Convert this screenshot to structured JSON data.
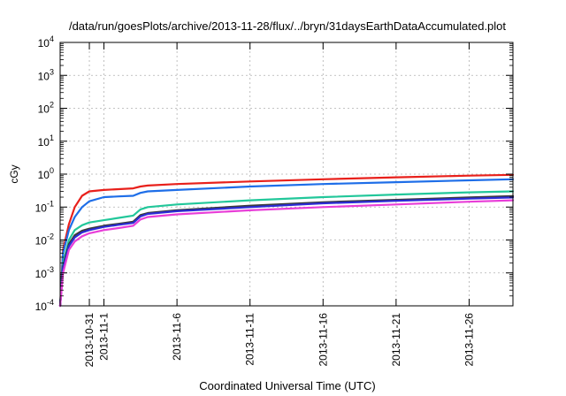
{
  "chart_data": {
    "type": "line",
    "title": "/data/run/goesPlots/archive/2013-11-28/flux/../bryn/31daysEarthDataAccumulated.plot",
    "xlabel": "Coordinated Universal Time (UTC)",
    "ylabel": "cGy",
    "y_scale": "log",
    "ylim": [
      0.0001,
      10000
    ],
    "xlim": [
      "2013-10-29",
      "2013-11-29"
    ],
    "x_ticks": [
      "2013-10-31",
      "2013-11-1",
      "2013-11-6",
      "2013-11-11",
      "2013-11-16",
      "2013-11-21",
      "2013-11-26"
    ],
    "y_ticks": [
      {
        "base": "10",
        "exp": "-4"
      },
      {
        "base": "10",
        "exp": "-3"
      },
      {
        "base": "10",
        "exp": "-2"
      },
      {
        "base": "10",
        "exp": "-1"
      },
      {
        "base": "10",
        "exp": "0"
      },
      {
        "base": "10",
        "exp": "1"
      },
      {
        "base": "10",
        "exp": "2"
      },
      {
        "base": "10",
        "exp": "3"
      },
      {
        "base": "10",
        "exp": "4"
      }
    ],
    "grid": true,
    "legend": "none",
    "series": [
      {
        "color": "#e8201b",
        "x": [
          "2013-10-29",
          "2013-10-29.2",
          "2013-10-29.6",
          "2013-10-30",
          "2013-10-30.5",
          "2013-10-31",
          "2013-11-1",
          "2013-11-2",
          "2013-11-3",
          "2013-11-3.5",
          "2013-11-4",
          "2013-11-6",
          "2013-11-11",
          "2013-11-16",
          "2013-11-21",
          "2013-11-26",
          "2013-11-29"
        ],
        "values": [
          0.0001,
          0.005,
          0.03,
          0.1,
          0.22,
          0.3,
          0.33,
          0.35,
          0.37,
          0.42,
          0.45,
          0.5,
          0.6,
          0.7,
          0.8,
          0.9,
          0.95
        ]
      },
      {
        "color": "#1e6ee8",
        "x": [
          "2013-10-29",
          "2013-10-29.2",
          "2013-10-29.6",
          "2013-10-30",
          "2013-10-30.5",
          "2013-10-31",
          "2013-11-1",
          "2013-11-2",
          "2013-11-3",
          "2013-11-3.5",
          "2013-11-4",
          "2013-11-6",
          "2013-11-11",
          "2013-11-16",
          "2013-11-21",
          "2013-11-26",
          "2013-11-29"
        ],
        "values": [
          0.0001,
          0.004,
          0.02,
          0.05,
          0.1,
          0.15,
          0.2,
          0.21,
          0.22,
          0.27,
          0.3,
          0.33,
          0.42,
          0.5,
          0.57,
          0.65,
          0.7
        ]
      },
      {
        "color": "#22c79a",
        "x": [
          "2013-10-29",
          "2013-10-29.2",
          "2013-10-29.6",
          "2013-10-30",
          "2013-10-30.5",
          "2013-10-31",
          "2013-11-1",
          "2013-11-2",
          "2013-11-3",
          "2013-11-3.5",
          "2013-11-4",
          "2013-11-6",
          "2013-11-11",
          "2013-11-16",
          "2013-11-21",
          "2013-11-26",
          "2013-11-29"
        ],
        "values": [
          0.0001,
          0.002,
          0.01,
          0.02,
          0.028,
          0.034,
          0.04,
          0.047,
          0.055,
          0.085,
          0.1,
          0.12,
          0.16,
          0.2,
          0.24,
          0.28,
          0.3
        ]
      },
      {
        "color": "#7a1f8c",
        "x": [
          "2013-10-29",
          "2013-10-29.2",
          "2013-10-29.6",
          "2013-10-30",
          "2013-10-30.5",
          "2013-10-31",
          "2013-11-1",
          "2013-11-2",
          "2013-11-3",
          "2013-11-3.5",
          "2013-11-4",
          "2013-11-6",
          "2013-11-11",
          "2013-11-16",
          "2013-11-21",
          "2013-11-26",
          "2013-11-29"
        ],
        "values": [
          0.0001,
          0.0015,
          0.007,
          0.013,
          0.018,
          0.021,
          0.026,
          0.03,
          0.035,
          0.055,
          0.064,
          0.078,
          0.105,
          0.135,
          0.16,
          0.19,
          0.205
        ]
      },
      {
        "color": "#3a3a3a",
        "x": [
          "2013-10-29",
          "2013-10-29.2",
          "2013-10-29.6",
          "2013-10-30",
          "2013-10-30.5",
          "2013-10-31",
          "2013-11-1",
          "2013-11-2",
          "2013-11-3",
          "2013-11-3.5",
          "2013-11-4",
          "2013-11-6",
          "2013-11-11",
          "2013-11-16",
          "2013-11-21",
          "2013-11-26",
          "2013-11-29"
        ],
        "values": [
          0.0001,
          0.0016,
          0.0075,
          0.014,
          0.019,
          0.022,
          0.027,
          0.031,
          0.036,
          0.057,
          0.066,
          0.08,
          0.11,
          0.14,
          0.165,
          0.195,
          0.215
        ]
      },
      {
        "color": "#2b2bd6",
        "x": [
          "2013-10-29",
          "2013-10-29.2",
          "2013-10-29.6",
          "2013-10-30",
          "2013-10-30.5",
          "2013-10-31",
          "2013-11-1",
          "2013-11-2",
          "2013-11-3",
          "2013-11-3.5",
          "2013-11-4",
          "2013-11-6",
          "2013-11-11",
          "2013-11-16",
          "2013-11-21",
          "2013-11-26",
          "2013-11-29"
        ],
        "values": [
          0.0001,
          0.0014,
          0.0065,
          0.012,
          0.017,
          0.02,
          0.025,
          0.029,
          0.033,
          0.052,
          0.062,
          0.075,
          0.1,
          0.13,
          0.155,
          0.18,
          0.195
        ]
      },
      {
        "color": "#e83ed8",
        "x": [
          "2013-10-29",
          "2013-10-29.2",
          "2013-10-29.6",
          "2013-10-30",
          "2013-10-30.5",
          "2013-10-31",
          "2013-11-1",
          "2013-11-2",
          "2013-11-3",
          "2013-11-3.5",
          "2013-11-4",
          "2013-11-6",
          "2013-11-11",
          "2013-11-16",
          "2013-11-21",
          "2013-11-26",
          "2013-11-29"
        ],
        "values": [
          0.0001,
          0.001,
          0.005,
          0.009,
          0.013,
          0.016,
          0.02,
          0.023,
          0.027,
          0.042,
          0.05,
          0.06,
          0.08,
          0.1,
          0.12,
          0.145,
          0.16
        ]
      }
    ]
  }
}
